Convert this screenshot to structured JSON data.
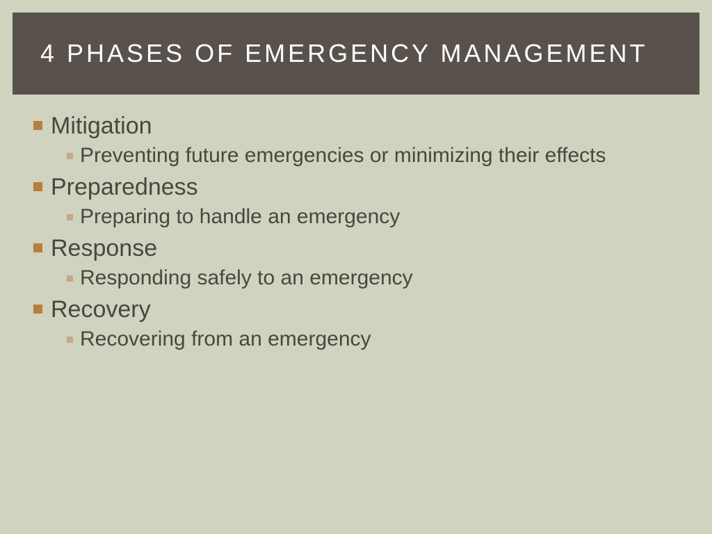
{
  "slide": {
    "title": "4 PHASES OF EMERGENCY MANAGEMENT",
    "background_color": "#d0d3bf",
    "title_bar_color": "#59524c",
    "title_text_color": "#ffffff",
    "title_fontsize": 36,
    "title_letter_spacing": 4,
    "bullet_l1_color": "#b77f3f",
    "bullet_l2_color": "#c3a986",
    "body_text_color": "#494740",
    "l1_fontsize": 34,
    "l2_fontsize": 30,
    "items": [
      {
        "label": "Mitigation",
        "sub": "Preventing future emergencies or minimizing their effects"
      },
      {
        "label": "Preparedness",
        "sub": "Preparing to handle an emergency"
      },
      {
        "label": "Response",
        "sub": "Responding safely to an emergency"
      },
      {
        "label": "Recovery",
        "sub": "Recovering from an emergency"
      }
    ]
  }
}
